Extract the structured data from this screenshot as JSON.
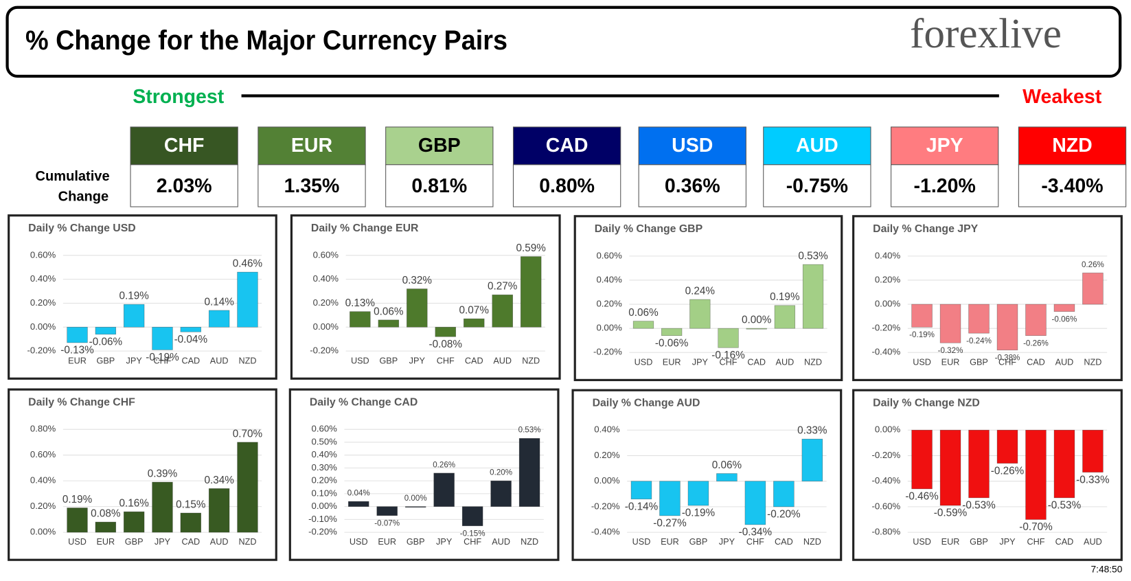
{
  "header": {
    "title": "% Change for the Major Currency Pairs",
    "logo": "forexlive"
  },
  "ranking": {
    "strongest": "Strongest",
    "weakest": "Weakest",
    "label": [
      "Cumulative",
      "Change"
    ],
    "cards": [
      {
        "currency": "CHF",
        "change": "2.03%",
        "color": "#375623"
      },
      {
        "currency": "EUR",
        "change": "1.35%",
        "color": "#538135"
      },
      {
        "currency": "GBP",
        "change": "0.81%",
        "color": "#a9d18e"
      },
      {
        "currency": "CAD",
        "change": "0.80%",
        "color": "#000066"
      },
      {
        "currency": "USD",
        "change": "0.36%",
        "color": "#0070f0"
      },
      {
        "currency": "AUD",
        "change": "-0.75%",
        "color": "#00ccff"
      },
      {
        "currency": "JPY",
        "change": "-1.20%",
        "color": "#ff7c80"
      },
      {
        "currency": "NZD",
        "change": "-3.40%",
        "color": "#ff0000"
      }
    ]
  },
  "chart_data": [
    {
      "type": "bar",
      "title": "Daily % Change USD",
      "categories": [
        "EUR",
        "GBP",
        "JPY",
        "CHF",
        "CAD",
        "AUD",
        "NZD"
      ],
      "values": [
        -0.13,
        -0.06,
        0.19,
        -0.19,
        -0.04,
        0.14,
        0.46
      ],
      "value_labels": [
        "-0.13%",
        "-0.06%",
        "0.19%",
        "-0.19%",
        "-0.04%",
        "0.14%",
        "0.46%"
      ],
      "ylim": [
        -0.2,
        0.6
      ],
      "yticks": [
        {
          "value": -0.2,
          "label": "-0.20%"
        },
        {
          "value": 0,
          "label": "0.00%"
        },
        {
          "value": 0.2,
          "label": "0.20%"
        },
        {
          "value": 0.4,
          "label": "0.40%"
        },
        {
          "value": 0.6,
          "label": "0.60%"
        }
      ],
      "color": "#18c4f0",
      "grid": true
    },
    {
      "type": "bar",
      "title": "Daily % Change EUR",
      "categories": [
        "USD",
        "GBP",
        "JPY",
        "CHF",
        "CAD",
        "AUD",
        "NZD"
      ],
      "values": [
        0.13,
        0.06,
        0.32,
        -0.08,
        0.07,
        0.27,
        0.59
      ],
      "value_labels": [
        "0.13%",
        "0.06%",
        "0.32%",
        "-0.08%",
        "0.07%",
        "0.27%",
        "0.59%"
      ],
      "ylim": [
        -0.2,
        0.6
      ],
      "yticks": [
        {
          "value": -0.2,
          "label": "-0.20%"
        },
        {
          "value": 0,
          "label": "0.00%"
        },
        {
          "value": 0.2,
          "label": "0.20%"
        },
        {
          "value": 0.4,
          "label": "0.40%"
        },
        {
          "value": 0.6,
          "label": "0.60%"
        }
      ],
      "color": "#4e7a2c",
      "grid": true
    },
    {
      "type": "bar",
      "title": "Daily % Change GBP",
      "categories": [
        "USD",
        "EUR",
        "JPY",
        "CHF",
        "CAD",
        "AUD",
        "NZD"
      ],
      "values": [
        0.06,
        -0.06,
        0.24,
        -0.16,
        0.0,
        0.19,
        0.53
      ],
      "value_labels": [
        "0.06%",
        "-0.06%",
        "0.24%",
        "-0.16%",
        "0.00%",
        "0.19%",
        "0.53%"
      ],
      "ylim": [
        -0.2,
        0.6
      ],
      "yticks": [
        {
          "value": -0.2,
          "label": "-0.20%"
        },
        {
          "value": 0,
          "label": "0.00%"
        },
        {
          "value": 0.2,
          "label": "0.20%"
        },
        {
          "value": 0.4,
          "label": "0.40%"
        },
        {
          "value": 0.6,
          "label": "0.60%"
        }
      ],
      "color": "#a3cf86",
      "grid": true
    },
    {
      "type": "bar",
      "title": "Daily % Change JPY",
      "categories": [
        "USD",
        "EUR",
        "GBP",
        "CHF",
        "CAD",
        "AUD",
        "NZD"
      ],
      "values": [
        -0.19,
        -0.32,
        -0.24,
        -0.38,
        -0.26,
        -0.06,
        0.26
      ],
      "value_labels": [
        "-0.19%",
        "-0.32%",
        "-0.24%",
        "-0.38%",
        "-0.26%",
        "-0.06%",
        "0.26%"
      ],
      "ylim": [
        -0.4,
        0.4
      ],
      "yticks": [
        {
          "value": -0.4,
          "label": "-0.40%"
        },
        {
          "value": -0.2,
          "label": "-0.20%"
        },
        {
          "value": 0,
          "label": "0.00%"
        },
        {
          "value": 0.2,
          "label": "0.20%"
        },
        {
          "value": 0.4,
          "label": "0.40%"
        }
      ],
      "color": "#f27f85",
      "grid": true
    },
    {
      "type": "bar",
      "title": "Daily % Change CHF",
      "categories": [
        "USD",
        "EUR",
        "GBP",
        "JPY",
        "CAD",
        "AUD",
        "NZD"
      ],
      "values": [
        0.19,
        0.08,
        0.16,
        0.39,
        0.15,
        0.34,
        0.7
      ],
      "value_labels": [
        "0.19%",
        "0.08%",
        "0.16%",
        "0.39%",
        "0.15%",
        "0.34%",
        "0.70%"
      ],
      "ylim": [
        0,
        0.8
      ],
      "yticks": [
        {
          "value": 0,
          "label": "0.00%"
        },
        {
          "value": 0.2,
          "label": "0.20%"
        },
        {
          "value": 0.4,
          "label": "0.40%"
        },
        {
          "value": 0.6,
          "label": "0.60%"
        },
        {
          "value": 0.8,
          "label": "0.80%"
        }
      ],
      "color": "#385a22",
      "grid": true
    },
    {
      "type": "bar",
      "title": "Daily % Change CAD",
      "categories": [
        "USD",
        "EUR",
        "GBP",
        "JPY",
        "CHF",
        "AUD",
        "NZD"
      ],
      "values": [
        0.04,
        -0.07,
        0.0,
        0.26,
        -0.15,
        0.2,
        0.53
      ],
      "value_labels": [
        "0.04%",
        "-0.07%",
        "0.00%",
        "0.26%",
        "-0.15%",
        "0.20%",
        "0.53%"
      ],
      "ylim": [
        -0.2,
        0.6
      ],
      "yticks": [
        {
          "value": -0.2,
          "label": "-0.20%"
        },
        {
          "value": -0.1,
          "label": "-0.10%"
        },
        {
          "value": 0,
          "label": "0.00%"
        },
        {
          "value": 0.1,
          "label": "0.10%"
        },
        {
          "value": 0.2,
          "label": "0.20%"
        },
        {
          "value": 0.3,
          "label": "0.30%"
        },
        {
          "value": 0.4,
          "label": "0.40%"
        },
        {
          "value": 0.5,
          "label": "0.50%"
        },
        {
          "value": 0.6,
          "label": "0.60%"
        }
      ],
      "color": "#222a35",
      "grid": true
    },
    {
      "type": "bar",
      "title": "Daily % Change AUD",
      "categories": [
        "USD",
        "EUR",
        "GBP",
        "JPY",
        "CHF",
        "CAD",
        "NZD"
      ],
      "values": [
        -0.14,
        -0.27,
        -0.19,
        0.06,
        -0.34,
        -0.2,
        0.33
      ],
      "value_labels": [
        "-0.14%",
        "-0.27%",
        "-0.19%",
        "0.06%",
        "-0.34%",
        "-0.20%",
        "0.33%"
      ],
      "ylim": [
        -0.4,
        0.4
      ],
      "yticks": [
        {
          "value": -0.4,
          "label": "-0.40%"
        },
        {
          "value": -0.2,
          "label": "-0.20%"
        },
        {
          "value": 0,
          "label": "0.00%"
        },
        {
          "value": 0.2,
          "label": "0.20%"
        },
        {
          "value": 0.4,
          "label": "0.40%"
        }
      ],
      "color": "#18c4f0",
      "grid": true
    },
    {
      "type": "bar",
      "title": "Daily % Change NZD",
      "categories": [
        "USD",
        "EUR",
        "GBP",
        "JPY",
        "CHF",
        "CAD",
        "AUD"
      ],
      "values": [
        -0.46,
        -0.59,
        -0.53,
        -0.26,
        -0.7,
        -0.53,
        -0.33
      ],
      "value_labels": [
        "-0.46%",
        "-0.59%",
        "-0.53%",
        "-0.26%",
        "-0.70%",
        "-0.53%",
        "-0.33%"
      ],
      "ylim": [
        -0.8,
        0
      ],
      "yticks": [
        {
          "value": -0.8,
          "label": "-0.80%"
        },
        {
          "value": -0.6,
          "label": "-0.60%"
        },
        {
          "value": -0.4,
          "label": "-0.40%"
        },
        {
          "value": -0.2,
          "label": "-0.20%"
        },
        {
          "value": 0,
          "label": "0.00%"
        }
      ],
      "color": "#f01010",
      "grid": true
    }
  ],
  "timestamp": "7:48:50"
}
